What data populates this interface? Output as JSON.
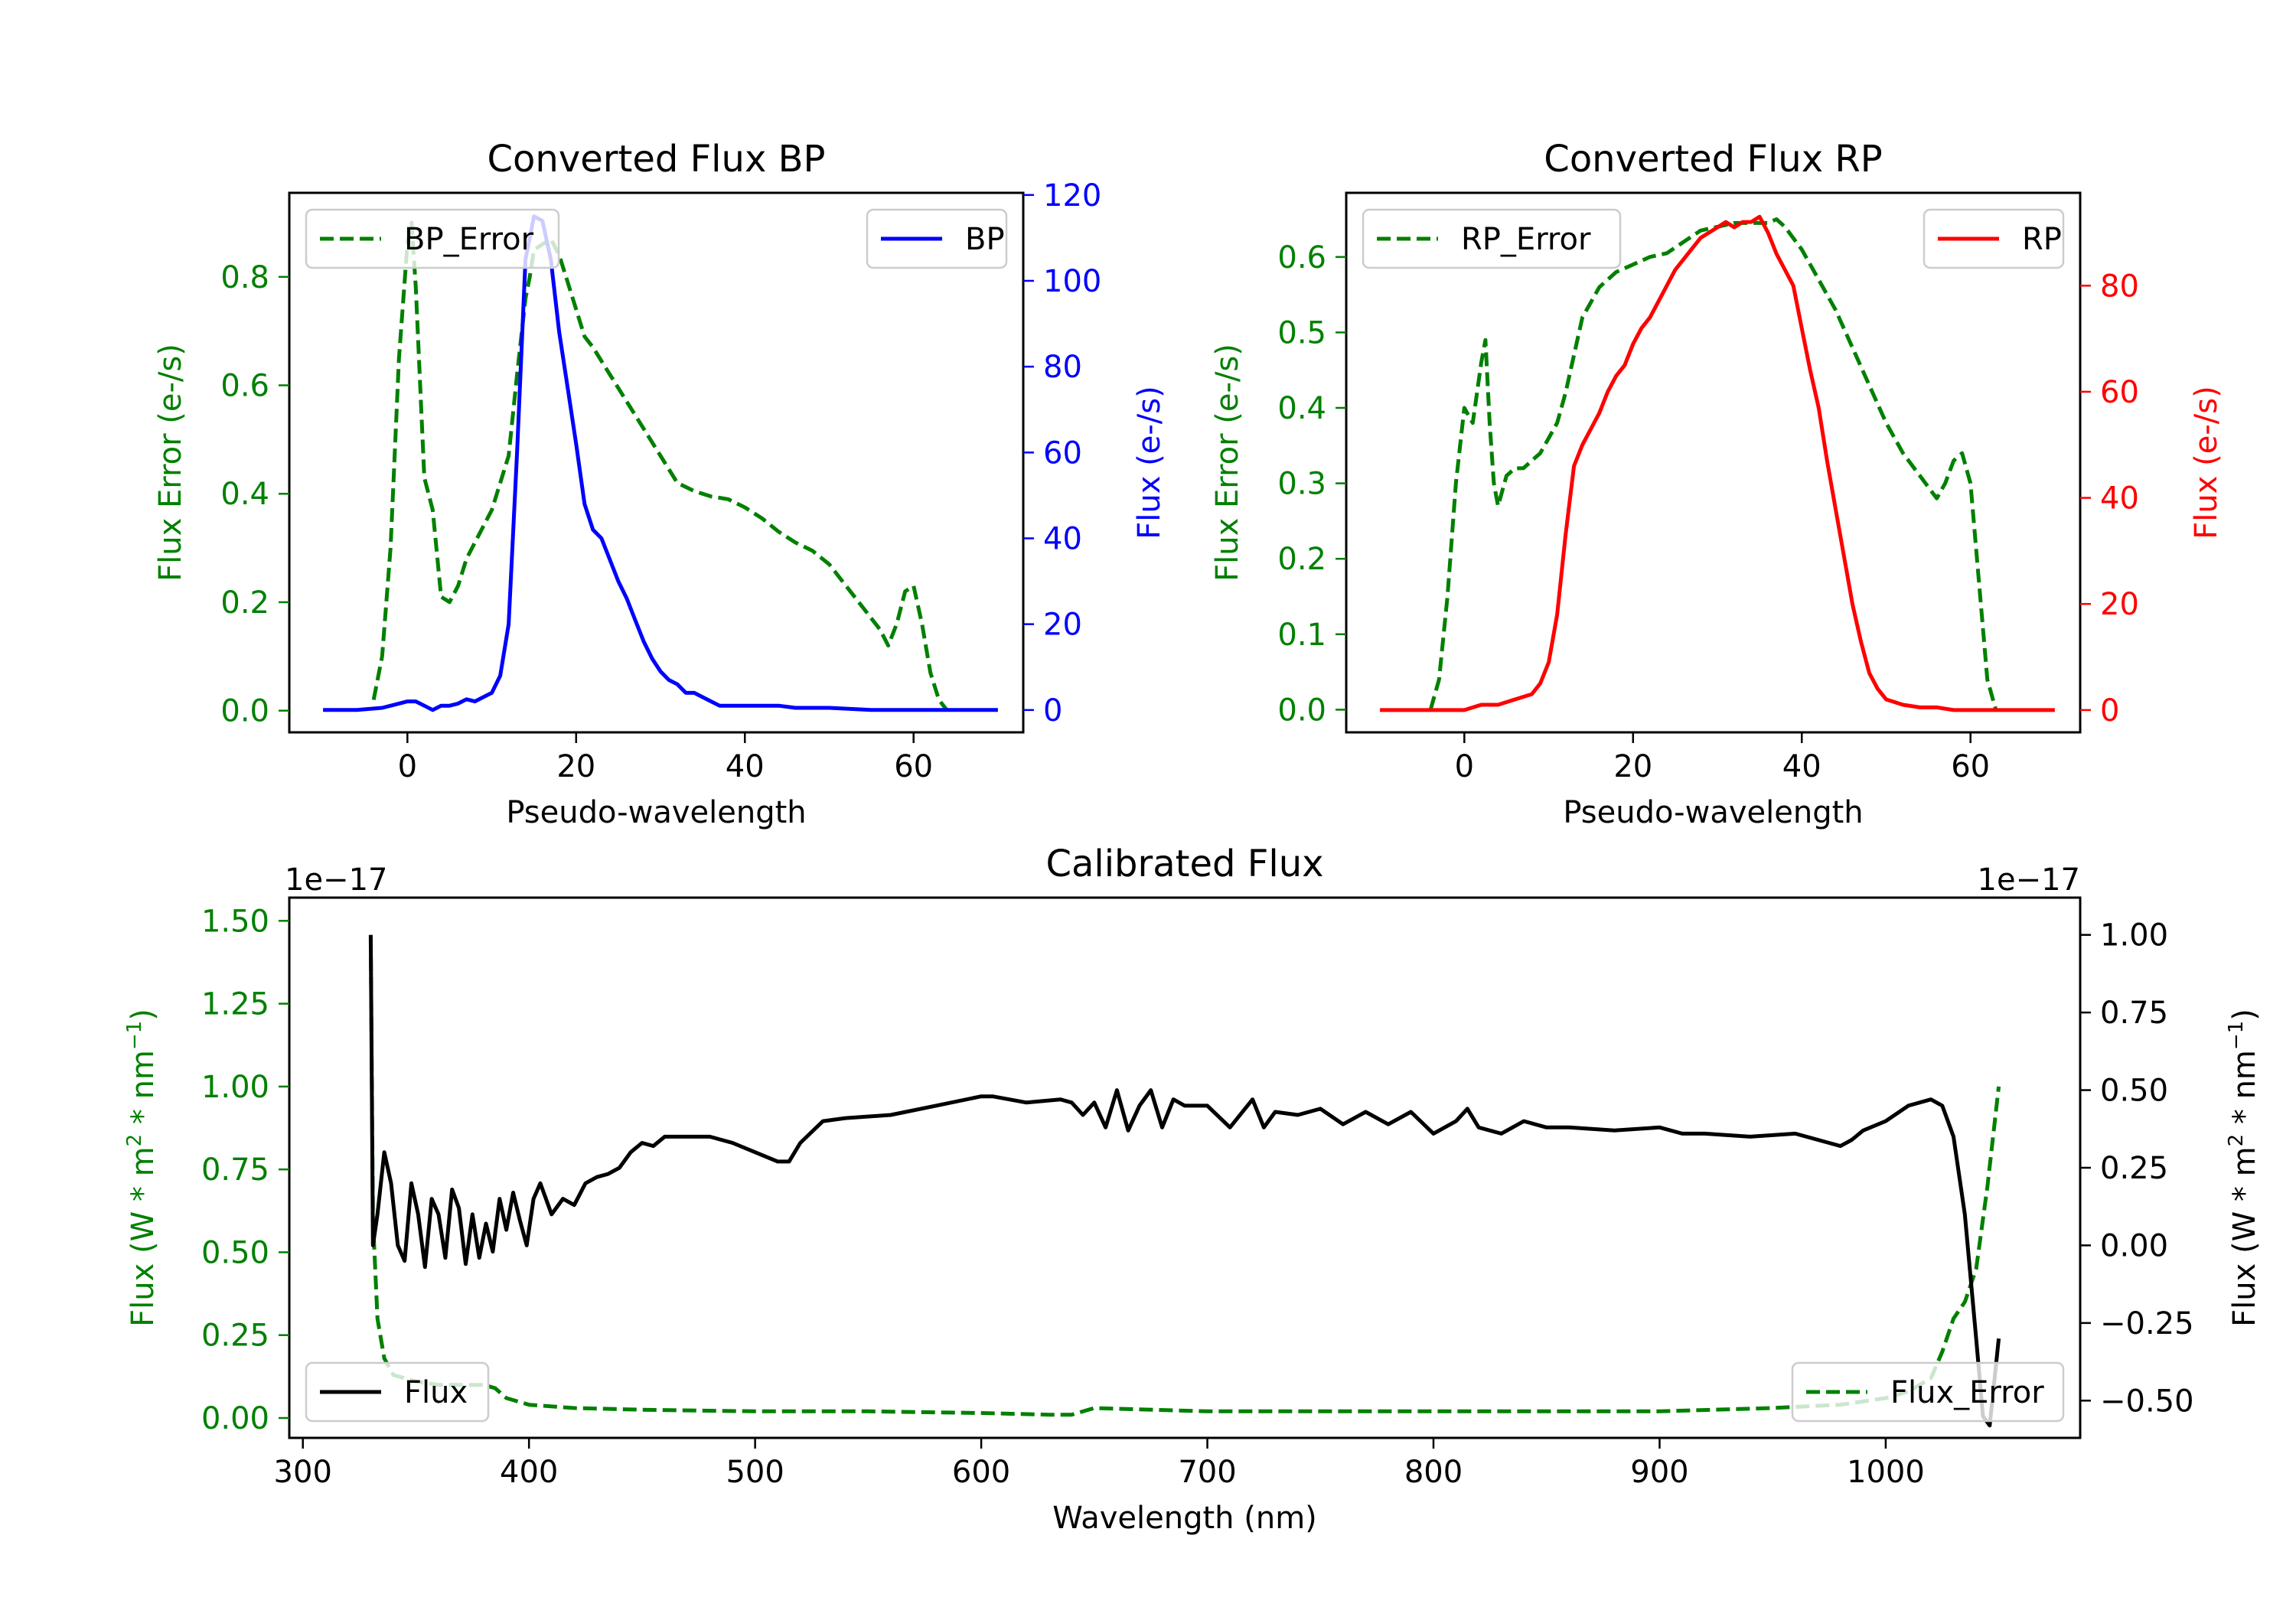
{
  "chart_data": [
    {
      "type": "line",
      "title": "Converted Flux BP",
      "xlabel": "Pseudo-wavelength",
      "ylabel_left": "Flux Error (e-/s)",
      "ylabel_right": "Flux (e-/s)",
      "xlim": [
        -14,
        73
      ],
      "ylim_left": [
        -0.04,
        0.955
      ],
      "ylim_right": [
        -5.2,
        120.5
      ],
      "xticks": [
        "0",
        "20",
        "40",
        "60"
      ],
      "yticks_left": [
        "0.0",
        "0.2",
        "0.4",
        "0.6",
        "0.8"
      ],
      "yticks_right": [
        "0",
        "20",
        "40",
        "60",
        "80",
        "100",
        "120"
      ],
      "legend_left": "BP_Error",
      "legend_right": "BP",
      "colors": {
        "error": "#008000",
        "flux": "#0000ff"
      },
      "series": [
        {
          "name": "BP_Error",
          "axis": "left",
          "style": "dashed",
          "x": [
            -4,
            -3,
            -2,
            -1,
            0,
            0.5,
            1,
            2,
            3,
            4,
            5,
            6,
            7,
            8,
            9,
            10,
            11,
            12,
            13,
            14,
            14.5,
            15,
            16,
            17,
            18,
            19,
            20,
            21,
            22,
            24,
            26,
            28,
            30,
            32,
            34,
            36,
            38,
            40,
            42,
            44,
            46,
            48,
            50,
            52,
            54,
            56,
            57,
            58,
            59,
            60,
            61,
            62,
            63,
            64
          ],
          "y": [
            0.02,
            0.1,
            0.3,
            0.65,
            0.86,
            0.9,
            0.78,
            0.43,
            0.37,
            0.21,
            0.2,
            0.23,
            0.28,
            0.31,
            0.34,
            0.37,
            0.42,
            0.47,
            0.62,
            0.76,
            0.8,
            0.85,
            0.86,
            0.87,
            0.84,
            0.79,
            0.74,
            0.69,
            0.67,
            0.62,
            0.57,
            0.52,
            0.47,
            0.42,
            0.405,
            0.395,
            0.39,
            0.375,
            0.355,
            0.33,
            0.31,
            0.295,
            0.27,
            0.23,
            0.19,
            0.15,
            0.12,
            0.16,
            0.22,
            0.23,
            0.16,
            0.07,
            0.02,
            0.0
          ]
        },
        {
          "name": "BP",
          "axis": "right",
          "style": "solid",
          "x": [
            -10,
            -6,
            -3,
            -1,
            0,
            1,
            2,
            3,
            4,
            5,
            6,
            7,
            8,
            9,
            10,
            11,
            12,
            13,
            14,
            15,
            16,
            17,
            18,
            19,
            20,
            21,
            22,
            23,
            24,
            25,
            26,
            27,
            28,
            29,
            30,
            31,
            32,
            33,
            34,
            35,
            36,
            37,
            38,
            40,
            42,
            44,
            46,
            48,
            50,
            55,
            60,
            65,
            70
          ],
          "y": [
            0,
            0,
            0.5,
            1.5,
            2,
            2,
            1,
            0,
            1,
            1,
            1.5,
            2.5,
            2,
            3,
            4,
            8,
            20,
            60,
            105,
            115,
            114,
            105,
            88,
            75,
            62,
            48,
            42,
            40,
            35,
            30,
            26,
            21,
            16,
            12,
            9,
            7,
            6,
            4,
            4,
            3,
            2,
            1,
            1,
            1,
            1,
            1,
            0.5,
            0.5,
            0.5,
            0,
            0,
            0,
            0
          ]
        }
      ]
    },
    {
      "type": "line",
      "title": "Converted Flux RP",
      "xlabel": "Pseudo-wavelength",
      "ylabel_left": "Flux Error (e-/s)",
      "ylabel_right": "Flux (e-/s)",
      "xlim": [
        -14,
        73
      ],
      "ylim_left": [
        -0.03,
        0.685
      ],
      "ylim_right": [
        -4.2,
        97.5
      ],
      "xticks": [
        "0",
        "20",
        "40",
        "60"
      ],
      "yticks_left": [
        "0.0",
        "0.1",
        "0.2",
        "0.3",
        "0.4",
        "0.5",
        "0.6"
      ],
      "yticks_right": [
        "0",
        "20",
        "40",
        "60",
        "80"
      ],
      "legend_left": "RP_Error",
      "legend_right": "RP",
      "colors": {
        "error": "#008000",
        "flux": "#ff0000"
      },
      "series": [
        {
          "name": "RP_Error",
          "axis": "left",
          "style": "dashed",
          "x": [
            -4,
            -3,
            -2,
            -1,
            0,
            1,
            1.5,
            2,
            2.5,
            3,
            3.5,
            4,
            5,
            6,
            7,
            8,
            9,
            10,
            11,
            12,
            13,
            14,
            15,
            16,
            18,
            20,
            22,
            24,
            26,
            28,
            30,
            32,
            34,
            36,
            37,
            38,
            40,
            42,
            44,
            46,
            48,
            50,
            52,
            54,
            56,
            57,
            58,
            59,
            60,
            61,
            62,
            63
          ],
          "y": [
            0.0,
            0.04,
            0.15,
            0.3,
            0.4,
            0.38,
            0.42,
            0.46,
            0.49,
            0.38,
            0.3,
            0.27,
            0.31,
            0.32,
            0.32,
            0.33,
            0.34,
            0.36,
            0.38,
            0.42,
            0.47,
            0.52,
            0.54,
            0.56,
            0.58,
            0.59,
            0.6,
            0.605,
            0.62,
            0.635,
            0.64,
            0.645,
            0.645,
            0.645,
            0.65,
            0.64,
            0.61,
            0.57,
            0.53,
            0.48,
            0.43,
            0.38,
            0.34,
            0.31,
            0.28,
            0.3,
            0.33,
            0.34,
            0.3,
            0.17,
            0.04,
            0.0
          ]
        },
        {
          "name": "RP",
          "axis": "right",
          "style": "solid",
          "x": [
            -10,
            -5,
            0,
            2,
            4,
            6,
            8,
            9,
            10,
            11,
            12,
            13,
            14,
            15,
            16,
            17,
            18,
            19,
            20,
            21,
            22,
            23,
            24,
            25,
            26,
            27,
            28,
            29,
            30,
            31,
            32,
            33,
            34,
            35,
            36,
            37,
            38,
            39,
            40,
            41,
            42,
            43,
            44,
            45,
            46,
            47,
            48,
            49,
            50,
            51,
            52,
            54,
            56,
            58,
            60,
            65,
            70
          ],
          "y": [
            0,
            0,
            0,
            1,
            1,
            2,
            3,
            5,
            9,
            18,
            33,
            46,
            50,
            53,
            56,
            60,
            63,
            65,
            69,
            72,
            74,
            77,
            80,
            83,
            85,
            87,
            89,
            90,
            91,
            92,
            91,
            92,
            92,
            93,
            90,
            86,
            83,
            80,
            72,
            64,
            57,
            47,
            38,
            29,
            20,
            13,
            7,
            4,
            2,
            1.5,
            1,
            0.5,
            0.5,
            0,
            0,
            0,
            0
          ]
        }
      ]
    },
    {
      "type": "line",
      "title": "Calibrated Flux",
      "xlabel": "Wavelength (nm)",
      "ylabel_left": "Flux (W * m^2 * nm^-1)",
      "ylabel_right": "Flux (W * m^2 * nm^-1)",
      "offset_left": "1e−17",
      "offset_right": "1e−17",
      "xlim": [
        294,
        1086
      ],
      "ylim_left": [
        -0.06,
        1.57
      ],
      "ylim_right": [
        -0.62,
        1.12
      ],
      "xticks": [
        "300",
        "400",
        "500",
        "600",
        "700",
        "800",
        "900",
        "1000"
      ],
      "yticks_left": [
        "0.00",
        "0.25",
        "0.50",
        "0.75",
        "1.00",
        "1.25",
        "1.50"
      ],
      "yticks_right": [
        "−0.50",
        "−0.25",
        "0.00",
        "0.25",
        "0.50",
        "0.75",
        "1.00"
      ],
      "legend_left": "Flux",
      "legend_right": "Flux_Error",
      "colors": {
        "error": "#008000",
        "flux": "#000000"
      },
      "series": [
        {
          "name": "Flux_Error",
          "axis": "left",
          "style": "dashed",
          "x": [
            330,
            331,
            333,
            336,
            340,
            350,
            360,
            370,
            380,
            385,
            390,
            400,
            420,
            450,
            500,
            550,
            600,
            630,
            640,
            650,
            700,
            750,
            800,
            850,
            900,
            950,
            980,
            1000,
            1010,
            1020,
            1025,
            1030,
            1035,
            1040,
            1045,
            1050
          ],
          "y": [
            1.45,
            0.6,
            0.3,
            0.18,
            0.13,
            0.11,
            0.1,
            0.1,
            0.1,
            0.09,
            0.06,
            0.04,
            0.03,
            0.025,
            0.02,
            0.02,
            0.015,
            0.01,
            0.01,
            0.03,
            0.02,
            0.02,
            0.02,
            0.02,
            0.02,
            0.03,
            0.04,
            0.06,
            0.08,
            0.12,
            0.2,
            0.3,
            0.35,
            0.45,
            0.7,
            1.0
          ]
        },
        {
          "name": "Flux",
          "axis": "right",
          "style": "solid",
          "x": [
            330,
            331,
            333,
            336,
            339,
            342,
            345,
            348,
            351,
            354,
            357,
            360,
            363,
            366,
            369,
            372,
            375,
            378,
            381,
            384,
            387,
            390,
            393,
            396,
            399,
            402,
            405,
            410,
            415,
            420,
            425,
            430,
            435,
            440,
            445,
            450,
            455,
            460,
            470,
            480,
            490,
            500,
            510,
            515,
            520,
            530,
            540,
            560,
            580,
            600,
            605,
            620,
            635,
            640,
            645,
            650,
            655,
            660,
            665,
            670,
            675,
            680,
            685,
            690,
            700,
            710,
            720,
            725,
            730,
            740,
            750,
            760,
            770,
            780,
            790,
            800,
            810,
            815,
            820,
            830,
            840,
            850,
            860,
            880,
            900,
            910,
            920,
            940,
            960,
            980,
            985,
            990,
            1000,
            1010,
            1020,
            1025,
            1030,
            1035,
            1040,
            1043,
            1046,
            1050
          ],
          "y": [
            1.0,
            0.0,
            0.1,
            0.3,
            0.2,
            0.0,
            -0.05,
            0.2,
            0.1,
            -0.07,
            0.15,
            0.1,
            -0.04,
            0.18,
            0.12,
            -0.06,
            0.1,
            -0.04,
            0.07,
            -0.02,
            0.15,
            0.05,
            0.17,
            0.08,
            0.0,
            0.15,
            0.2,
            0.1,
            0.15,
            0.13,
            0.2,
            0.22,
            0.23,
            0.25,
            0.3,
            0.33,
            0.32,
            0.35,
            0.35,
            0.35,
            0.33,
            0.3,
            0.27,
            0.27,
            0.33,
            0.4,
            0.41,
            0.42,
            0.45,
            0.48,
            0.48,
            0.46,
            0.47,
            0.46,
            0.42,
            0.46,
            0.38,
            0.5,
            0.37,
            0.45,
            0.5,
            0.38,
            0.47,
            0.45,
            0.45,
            0.38,
            0.47,
            0.38,
            0.43,
            0.42,
            0.44,
            0.39,
            0.43,
            0.39,
            0.43,
            0.36,
            0.4,
            0.44,
            0.38,
            0.36,
            0.4,
            0.38,
            0.38,
            0.37,
            0.38,
            0.36,
            0.36,
            0.35,
            0.36,
            0.32,
            0.34,
            0.37,
            0.4,
            0.45,
            0.47,
            0.45,
            0.35,
            0.1,
            -0.3,
            -0.55,
            -0.58,
            -0.3
          ]
        }
      ]
    }
  ]
}
